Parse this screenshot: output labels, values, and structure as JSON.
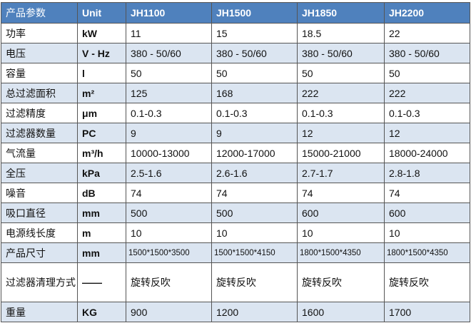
{
  "table": {
    "header": [
      "产品参数",
      "Unit",
      "JH1100",
      "JH1500",
      "JH1850",
      "JH2200"
    ],
    "rows": [
      [
        "功率",
        "kW",
        "11",
        "15",
        "18.5",
        "22"
      ],
      [
        "电压",
        "V - Hz",
        "380 - 50/60",
        "380 - 50/60",
        "380 - 50/60",
        "380 - 50/60"
      ],
      [
        "容量",
        "l",
        "50",
        "50",
        "50",
        "50"
      ],
      [
        "总过滤面积",
        "m²",
        "125",
        "168",
        "222",
        "222"
      ],
      [
        "过滤精度",
        "μm",
        "0.1-0.3",
        "0.1-0.3",
        "0.1-0.3",
        "0.1-0.3"
      ],
      [
        "过滤器数量",
        "PC",
        "9",
        "9",
        "12",
        "12"
      ],
      [
        "气流量",
        "m³/h",
        "10000-13000",
        "12000-17000",
        "15000-21000",
        "18000-24000"
      ],
      [
        "全压",
        "kPa",
        "2.5-1.6",
        "2.6-1.6",
        "2.7-1.7",
        "2.8-1.8"
      ],
      [
        "噪音",
        "dB",
        "74",
        "74",
        "74",
        "74"
      ],
      [
        "吸口直径",
        "mm",
        "500",
        "500",
        "600",
        "600"
      ],
      [
        "电源线长度",
        "m",
        "10",
        "10",
        "10",
        "10"
      ],
      [
        "产品尺寸",
        "mm",
        "1500*1500*3500",
        "1500*1500*4150",
        "1800*1500*4350",
        "1800*1500*4350"
      ],
      [
        "过滤器清理方式",
        "——",
        "旋转反吹",
        "旋转反吹",
        "旋转反吹",
        "旋转反吹"
      ],
      [
        "重量",
        "KG",
        "900",
        "1200",
        "1600",
        "1700"
      ]
    ]
  }
}
